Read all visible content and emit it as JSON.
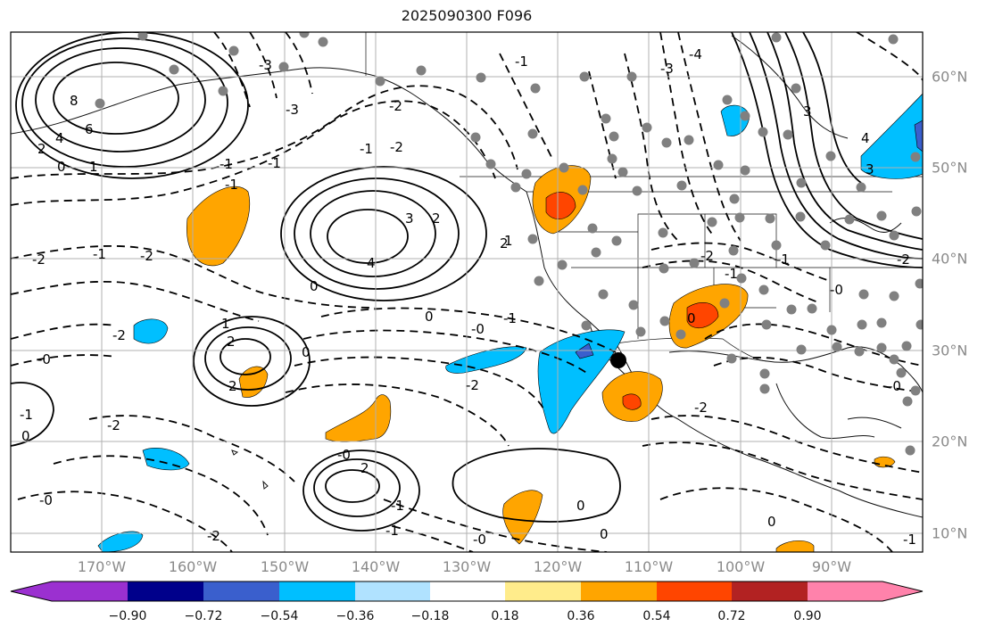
{
  "title": "2025090300 F096",
  "colors": {
    "land": "#ffffff",
    "border": "#111111",
    "grid": "#b0b0b0",
    "station": "#808080",
    "marker": "#000000"
  },
  "map": {
    "lon_range": [
      -180,
      -80
    ],
    "lat_range": [
      8,
      66
    ],
    "lon_ticks": [
      "170°W",
      "160°W",
      "150°W",
      "140°W",
      "130°W",
      "120°W",
      "110°W",
      "100°W",
      "90°W"
    ],
    "lat_ticks": [
      "10°N",
      "20°N",
      "30°N",
      "40°N",
      "50°N",
      "60°N"
    ]
  },
  "colorbar": {
    "ticks": [
      "−0.90",
      "−0.72",
      "−0.54",
      "−0.36",
      "−0.18",
      "0.18",
      "0.36",
      "0.54",
      "0.72",
      "0.90"
    ],
    "colors": [
      "#9b30d0",
      "#00008b",
      "#3a5fcd",
      "#00bfff",
      "#b0e2ff",
      "#ffffff",
      "#ffec8b",
      "#ffa500",
      "#ff4500",
      "#b22222",
      "#ff82ab"
    ]
  },
  "chart_data": {
    "type": "map-contour",
    "field": "filled anomaly shading with black contour lines (solid positive, dashed negative)",
    "contour_labels": [
      "8",
      "6",
      "4",
      "2",
      "1",
      "0",
      "0",
      "2",
      "3",
      "4",
      "-2",
      "-1",
      "-2",
      "-1",
      "-1",
      "-0",
      "-2",
      "2",
      "1",
      "0",
      "2",
      "-1",
      "-2",
      "0",
      "-0",
      "-2",
      "-1",
      "2",
      "-0",
      "-0",
      "0",
      "0",
      "-2",
      "0",
      "-0",
      "-1",
      "-2",
      "0",
      "3",
      "-3",
      "-4",
      "-2",
      "-3",
      "-1",
      "1",
      "2",
      "3",
      "4",
      "-3",
      "-2",
      "-1",
      "-0",
      "-1",
      "-1",
      "-2",
      "-1",
      "0",
      "-1",
      "-0",
      "-2",
      "-1"
    ],
    "marker": {
      "label": "target point",
      "lon": -113,
      "lat": 29
    }
  }
}
